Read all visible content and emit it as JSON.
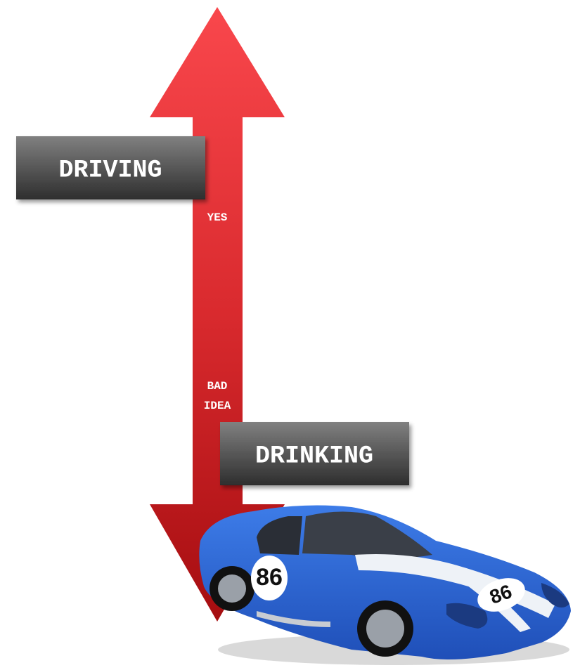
{
  "labels": {
    "top": "DRIVING",
    "bottom": "DRINKING"
  },
  "notes": {
    "top": "YES",
    "bottom": [
      "BAD",
      "IDEA"
    ]
  },
  "car": {
    "number": "86"
  }
}
